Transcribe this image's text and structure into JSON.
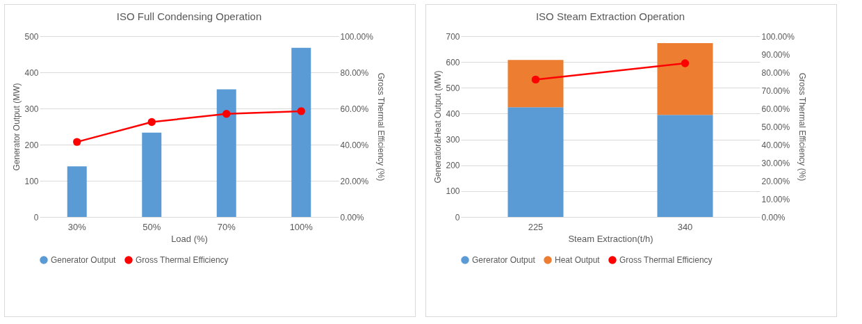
{
  "chart_data": [
    {
      "type": "bar",
      "title": "ISO Full Condensing Operation",
      "xlabel": "Load (%)",
      "ylabel": "Generator Output (MW)",
      "y2label": "Gross Thermal Efficiency (%)",
      "categories": [
        "30%",
        "50%",
        "70%",
        "100%"
      ],
      "series": [
        {
          "name": "Generator Output",
          "color": "#5b9bd5",
          "values": [
            140,
            233,
            353,
            468
          ]
        },
        {
          "name": "Gross Thermal Efficiency",
          "type": "line",
          "axis": "y2",
          "color": "#ff0000",
          "values": [
            41.5,
            52.5,
            57,
            58.5
          ]
        }
      ],
      "ylim": [
        0,
        500
      ],
      "yticks": [
        0,
        100,
        200,
        300,
        400,
        500
      ],
      "y2lim": [
        0,
        100
      ],
      "y2ticks": [
        {
          "value": 0,
          "label": "0.00%"
        },
        {
          "value": 20,
          "label": "20.00%"
        },
        {
          "value": 40,
          "label": "40.00%"
        },
        {
          "value": 60,
          "label": "60.00%"
        },
        {
          "value": 80,
          "label": "80.00%"
        },
        {
          "value": 100,
          "label": "100.00%"
        }
      ],
      "grid": "y",
      "legend": "bottom",
      "marker": "circle"
    },
    {
      "type": "bar",
      "title": "ISO Steam Extraction Operation",
      "xlabel": "Steam Extraction(t/h)",
      "ylabel": "Generatior&Heat Output (MW)",
      "y2label": "Gross Thermal Efficiency (%)",
      "categories": [
        "225",
        "340"
      ],
      "stacked": true,
      "series": [
        {
          "name": "Gererator Output",
          "color": "#5b9bd5",
          "values": [
            425,
            395
          ]
        },
        {
          "name": "Heat Output",
          "color": "#ed7d31",
          "values": [
            183,
            278
          ]
        },
        {
          "name": "Gross Thermal Efficiency",
          "type": "line",
          "axis": "y2",
          "color": "#ff0000",
          "values": [
            76,
            85
          ]
        }
      ],
      "ylim": [
        0,
        700
      ],
      "yticks": [
        0,
        100,
        200,
        300,
        400,
        500,
        600,
        700
      ],
      "y2lim": [
        0,
        100
      ],
      "y2ticks": [
        {
          "value": 0,
          "label": "0.00%"
        },
        {
          "value": 10,
          "label": "10.00%"
        },
        {
          "value": 20,
          "label": "20.00%"
        },
        {
          "value": 30,
          "label": "30.00%"
        },
        {
          "value": 40,
          "label": "40.00%"
        },
        {
          "value": 50,
          "label": "50.00%"
        },
        {
          "value": 60,
          "label": "60.00%"
        },
        {
          "value": 70,
          "label": "70.00%"
        },
        {
          "value": 80,
          "label": "80.00%"
        },
        {
          "value": 90,
          "label": "90.00%"
        },
        {
          "value": 100,
          "label": "100.00%"
        }
      ],
      "grid": "y",
      "legend": "bottom",
      "marker": "circle"
    }
  ]
}
